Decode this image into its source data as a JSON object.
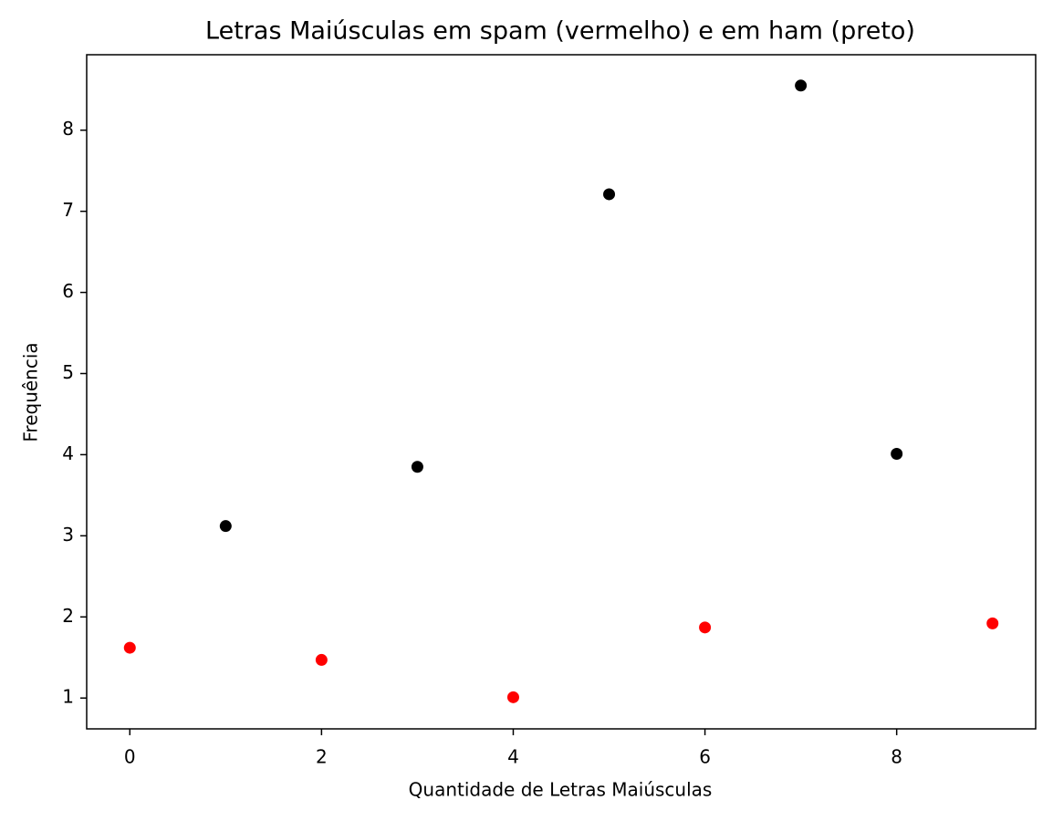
{
  "chart_data": {
    "type": "scatter",
    "title": "Letras Maiúsculas em spam (vermelho) e em ham (preto)",
    "xlabel": "Quantidade de Letras Maiúsculas",
    "ylabel": "Frequência",
    "series": [
      {
        "color": "#ff0000",
        "x": [
          0,
          2,
          4,
          6,
          9
        ],
        "values": [
          1.62,
          1.47,
          1.01,
          1.87,
          1.92
        ]
      },
      {
        "color": "#000000",
        "x": [
          1,
          3,
          5,
          7,
          8
        ],
        "values": [
          3.12,
          3.85,
          7.21,
          8.55,
          4.01
        ]
      }
    ],
    "xlim": [
      -0.45,
      9.45
    ],
    "ylim": [
      0.62,
      8.93
    ],
    "xticks": [
      0,
      2,
      4,
      6,
      8
    ],
    "yticks": [
      1,
      2,
      3,
      4,
      5,
      6,
      7,
      8
    ],
    "grid": false
  }
}
